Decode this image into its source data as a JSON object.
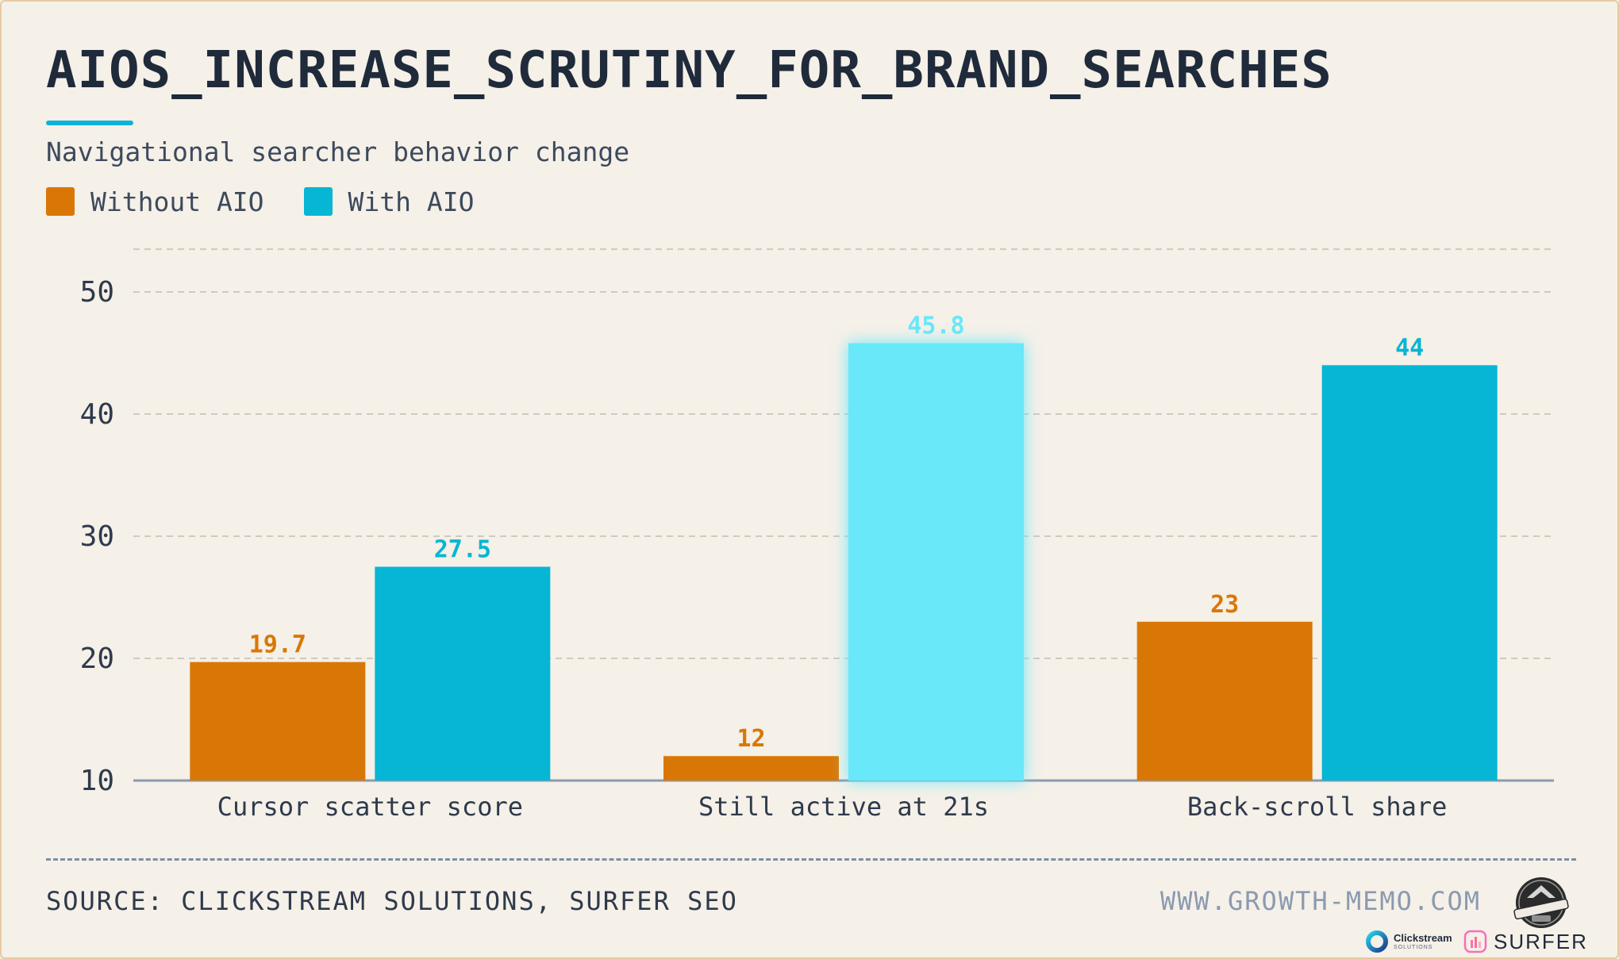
{
  "header": {
    "title": "AIOS_INCREASE_SCRUTINY_FOR_BRAND_SEARCHES",
    "subtitle": "Navigational searcher behavior change"
  },
  "legend": [
    {
      "label": "Without AIO",
      "color": "#d97706"
    },
    {
      "label": "With AIO",
      "color": "#06b6d4"
    }
  ],
  "colors": {
    "without": "#d97706",
    "with": "#06b6d4",
    "highlight": "#67e8f9",
    "axis": "#8a9ab0",
    "grid": "#cfcac0",
    "tick_text": "#2e3a4c",
    "category_text": "#2e3a4c"
  },
  "chart_data": {
    "type": "bar",
    "categories": [
      "Cursor scatter score",
      "Still active at 21s",
      "Back-scroll share"
    ],
    "series": [
      {
        "name": "Without AIO",
        "values": [
          19.7,
          12,
          23
        ]
      },
      {
        "name": "With AIO",
        "values": [
          27.5,
          45.8,
          44
        ]
      }
    ],
    "value_labels": [
      [
        "19.7",
        "12",
        "23"
      ],
      [
        "27.5",
        "45.8",
        "44"
      ]
    ],
    "highlighted": {
      "series": 1,
      "category": 1
    },
    "yticks": [
      10,
      20,
      30,
      40,
      50
    ],
    "ylim": [
      10,
      53.5
    ],
    "grid": true,
    "legend_position": "top-left",
    "xlabel": "",
    "ylabel": ""
  },
  "footer": {
    "source": "SOURCE: CLICKSTREAM SOLUTIONS, SURFER SEO",
    "website": "WWW.GROWTH-MEMO.COM",
    "logos": [
      {
        "name": "Clickstream",
        "sub": "SOLUTIONS",
        "icon": "clickstream-ring-icon"
      },
      {
        "name": "SURFER",
        "icon": "surfer-bars-icon"
      },
      {
        "name": "GROWTH MEMO",
        "icon": "growth-memo-badge-icon"
      }
    ]
  }
}
